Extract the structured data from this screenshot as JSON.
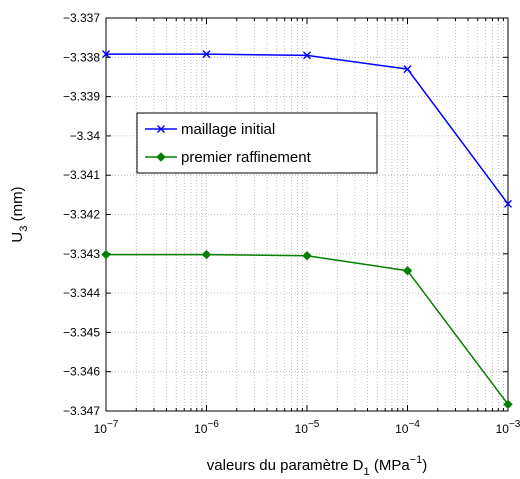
{
  "chart_data": {
    "type": "line",
    "title": "",
    "xlabel": {
      "text": "valeurs du paramètre D",
      "sub": "1",
      "unit_open": " (MPa",
      "sup": "−1",
      "unit_close": ")"
    },
    "ylabel": {
      "text": "U",
      "sub": "3",
      "unit": " (mm)"
    },
    "x_scale": "log",
    "xlim": [
      1e-07,
      0.001
    ],
    "ylim": [
      -3.347,
      -3.337
    ],
    "x_ticks": [
      {
        "base": "10",
        "exp": "−7",
        "value": 1e-07
      },
      {
        "base": "10",
        "exp": "−6",
        "value": 1e-06
      },
      {
        "base": "10",
        "exp": "−5",
        "value": 1e-05
      },
      {
        "base": "10",
        "exp": "−4",
        "value": 0.0001
      },
      {
        "base": "10",
        "exp": "−3",
        "value": 0.001
      }
    ],
    "y_ticks": [
      {
        "label": "−3.337",
        "value": -3.337
      },
      {
        "label": "−3.338",
        "value": -3.338
      },
      {
        "label": "−3.339",
        "value": -3.339
      },
      {
        "label": "−3.34",
        "value": -3.34
      },
      {
        "label": "−3.341",
        "value": -3.341
      },
      {
        "label": "−3.342",
        "value": -3.342
      },
      {
        "label": "−3.343",
        "value": -3.343
      },
      {
        "label": "−3.344",
        "value": -3.344
      },
      {
        "label": "−3.345",
        "value": -3.345
      },
      {
        "label": "−3.346",
        "value": -3.346
      },
      {
        "label": "−3.347",
        "value": -3.347
      }
    ],
    "grid": true,
    "grid_style": "dotted",
    "legend_position": "center-left",
    "series": [
      {
        "name": "maillage initial",
        "color": "#0000ff",
        "marker": "x",
        "x": [
          1e-07,
          1e-06,
          1e-05,
          0.0001,
          0.001
        ],
        "y": [
          -3.33792,
          -3.33792,
          -3.33795,
          -3.3383,
          -3.34173
        ]
      },
      {
        "name": "premier raffinement",
        "color": "#008000",
        "marker": "diamond",
        "x": [
          1e-07,
          1e-06,
          1e-05,
          0.0001,
          0.001
        ],
        "y": [
          -3.34302,
          -3.34302,
          -3.34305,
          -3.34343,
          -3.34683
        ]
      }
    ]
  }
}
